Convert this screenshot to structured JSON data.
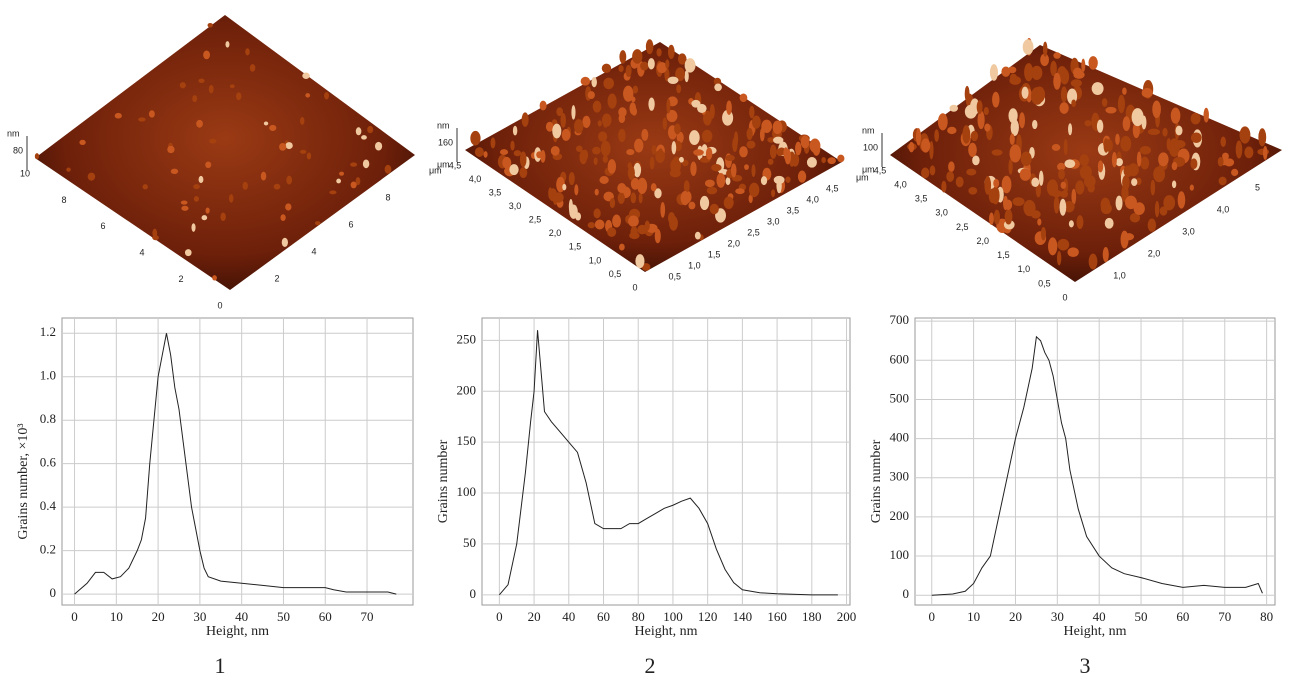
{
  "chart_data": [
    {
      "type": "line",
      "xlabel": "Height, nm",
      "ylabel": "Grains number, ×10³",
      "color": "#222222",
      "grid": true,
      "x": [
        0,
        3,
        5,
        7,
        9,
        11,
        13,
        15,
        16,
        17,
        18,
        19,
        20,
        21,
        22,
        23,
        24,
        25,
        26,
        27,
        28,
        29,
        30,
        31,
        32,
        35,
        40,
        45,
        50,
        55,
        60,
        62,
        65,
        70,
        75,
        77
      ],
      "values": [
        0,
        0.05,
        0.1,
        0.1,
        0.07,
        0.08,
        0.12,
        0.2,
        0.25,
        0.35,
        0.6,
        0.8,
        1.0,
        1.1,
        1.2,
        1.1,
        0.95,
        0.85,
        0.7,
        0.55,
        0.4,
        0.3,
        0.2,
        0.12,
        0.08,
        0.06,
        0.05,
        0.04,
        0.03,
        0.03,
        0.03,
        0.02,
        0.01,
        0.01,
        0.01,
        0
      ],
      "xlim": [
        -3,
        81
      ],
      "ylim": [
        -0.05,
        1.27
      ],
      "xticks": [
        0,
        10,
        20,
        30,
        40,
        50,
        60,
        70
      ],
      "yticks": [
        0,
        0.2,
        0.4,
        0.6,
        0.8,
        {
          "value": 1,
          "label": "1.0"
        },
        1.2
      ]
    },
    {
      "type": "line",
      "xlabel": "Height, nm",
      "ylabel": "Grains number",
      "color": "#222222",
      "grid": true,
      "x": [
        0,
        5,
        10,
        15,
        18,
        20,
        22,
        24,
        26,
        30,
        35,
        40,
        45,
        50,
        55,
        60,
        65,
        70,
        75,
        80,
        85,
        90,
        95,
        100,
        105,
        110,
        115,
        120,
        125,
        130,
        135,
        140,
        150,
        160,
        180,
        195
      ],
      "values": [
        0,
        10,
        50,
        120,
        170,
        200,
        260,
        220,
        180,
        170,
        160,
        150,
        140,
        110,
        70,
        65,
        65,
        65,
        70,
        70,
        75,
        80,
        85,
        88,
        92,
        95,
        85,
        70,
        45,
        25,
        12,
        5,
        2,
        1,
        0,
        0
      ],
      "xlim": [
        -10,
        202
      ],
      "ylim": [
        -10,
        272
      ],
      "xticks": [
        0,
        20,
        40,
        60,
        80,
        100,
        120,
        140,
        160,
        180,
        200
      ],
      "yticks": [
        0,
        50,
        100,
        150,
        200,
        250
      ]
    },
    {
      "type": "line",
      "xlabel": "Height, nm",
      "ylabel": "Grains number",
      "color": "#222222",
      "grid": true,
      "x": [
        0,
        5,
        8,
        10,
        12,
        14,
        16,
        18,
        20,
        22,
        24,
        25,
        26,
        27,
        28,
        29,
        30,
        31,
        32,
        33,
        35,
        37,
        40,
        43,
        46,
        50,
        55,
        60,
        65,
        70,
        75,
        78,
        79
      ],
      "values": [
        0,
        3,
        10,
        30,
        70,
        100,
        200,
        300,
        400,
        480,
        580,
        660,
        650,
        620,
        600,
        560,
        500,
        440,
        400,
        320,
        220,
        150,
        100,
        70,
        55,
        45,
        30,
        20,
        25,
        20,
        20,
        30,
        5
      ],
      "xlim": [
        -4,
        82
      ],
      "ylim": [
        -25,
        708
      ],
      "xticks": [
        0,
        10,
        20,
        30,
        40,
        50,
        60,
        70,
        80
      ],
      "yticks": [
        0,
        100,
        200,
        300,
        400,
        500,
        600,
        700
      ]
    }
  ],
  "images": [
    {
      "z_unit": "nm",
      "z_tick": "80",
      "left_ticks": [
        "10",
        "8",
        "6",
        "4",
        "2",
        "0"
      ],
      "right_ticks": [
        "2",
        "4",
        "6",
        "8"
      ],
      "right_unit": "μm"
    },
    {
      "z_unit": "nm",
      "z_tick": "160",
      "left_unit": "μm",
      "left_ticks": [
        "4,5",
        "4,0",
        "3,5",
        "3,0",
        "2,5",
        "2,0",
        "1,5",
        "1,0",
        "0,5",
        "0"
      ],
      "right_ticks": [
        "0,5",
        "1,0",
        "1,5",
        "2,0",
        "2,5",
        "3,0",
        "3,5",
        "4,0",
        "4,5"
      ],
      "right_unit": "μm"
    },
    {
      "z_unit": "nm",
      "z_tick": "100",
      "left_unit": "μm",
      "left_ticks": [
        "4,5",
        "4,0",
        "3,5",
        "3,0",
        "2,5",
        "2,0",
        "1,5",
        "1,0",
        "0,5",
        "0"
      ],
      "right_ticks": [
        "1,0",
        "2,0",
        "3,0",
        "4,0",
        "5"
      ]
    }
  ],
  "panels": [
    "1",
    "2",
    "3"
  ]
}
